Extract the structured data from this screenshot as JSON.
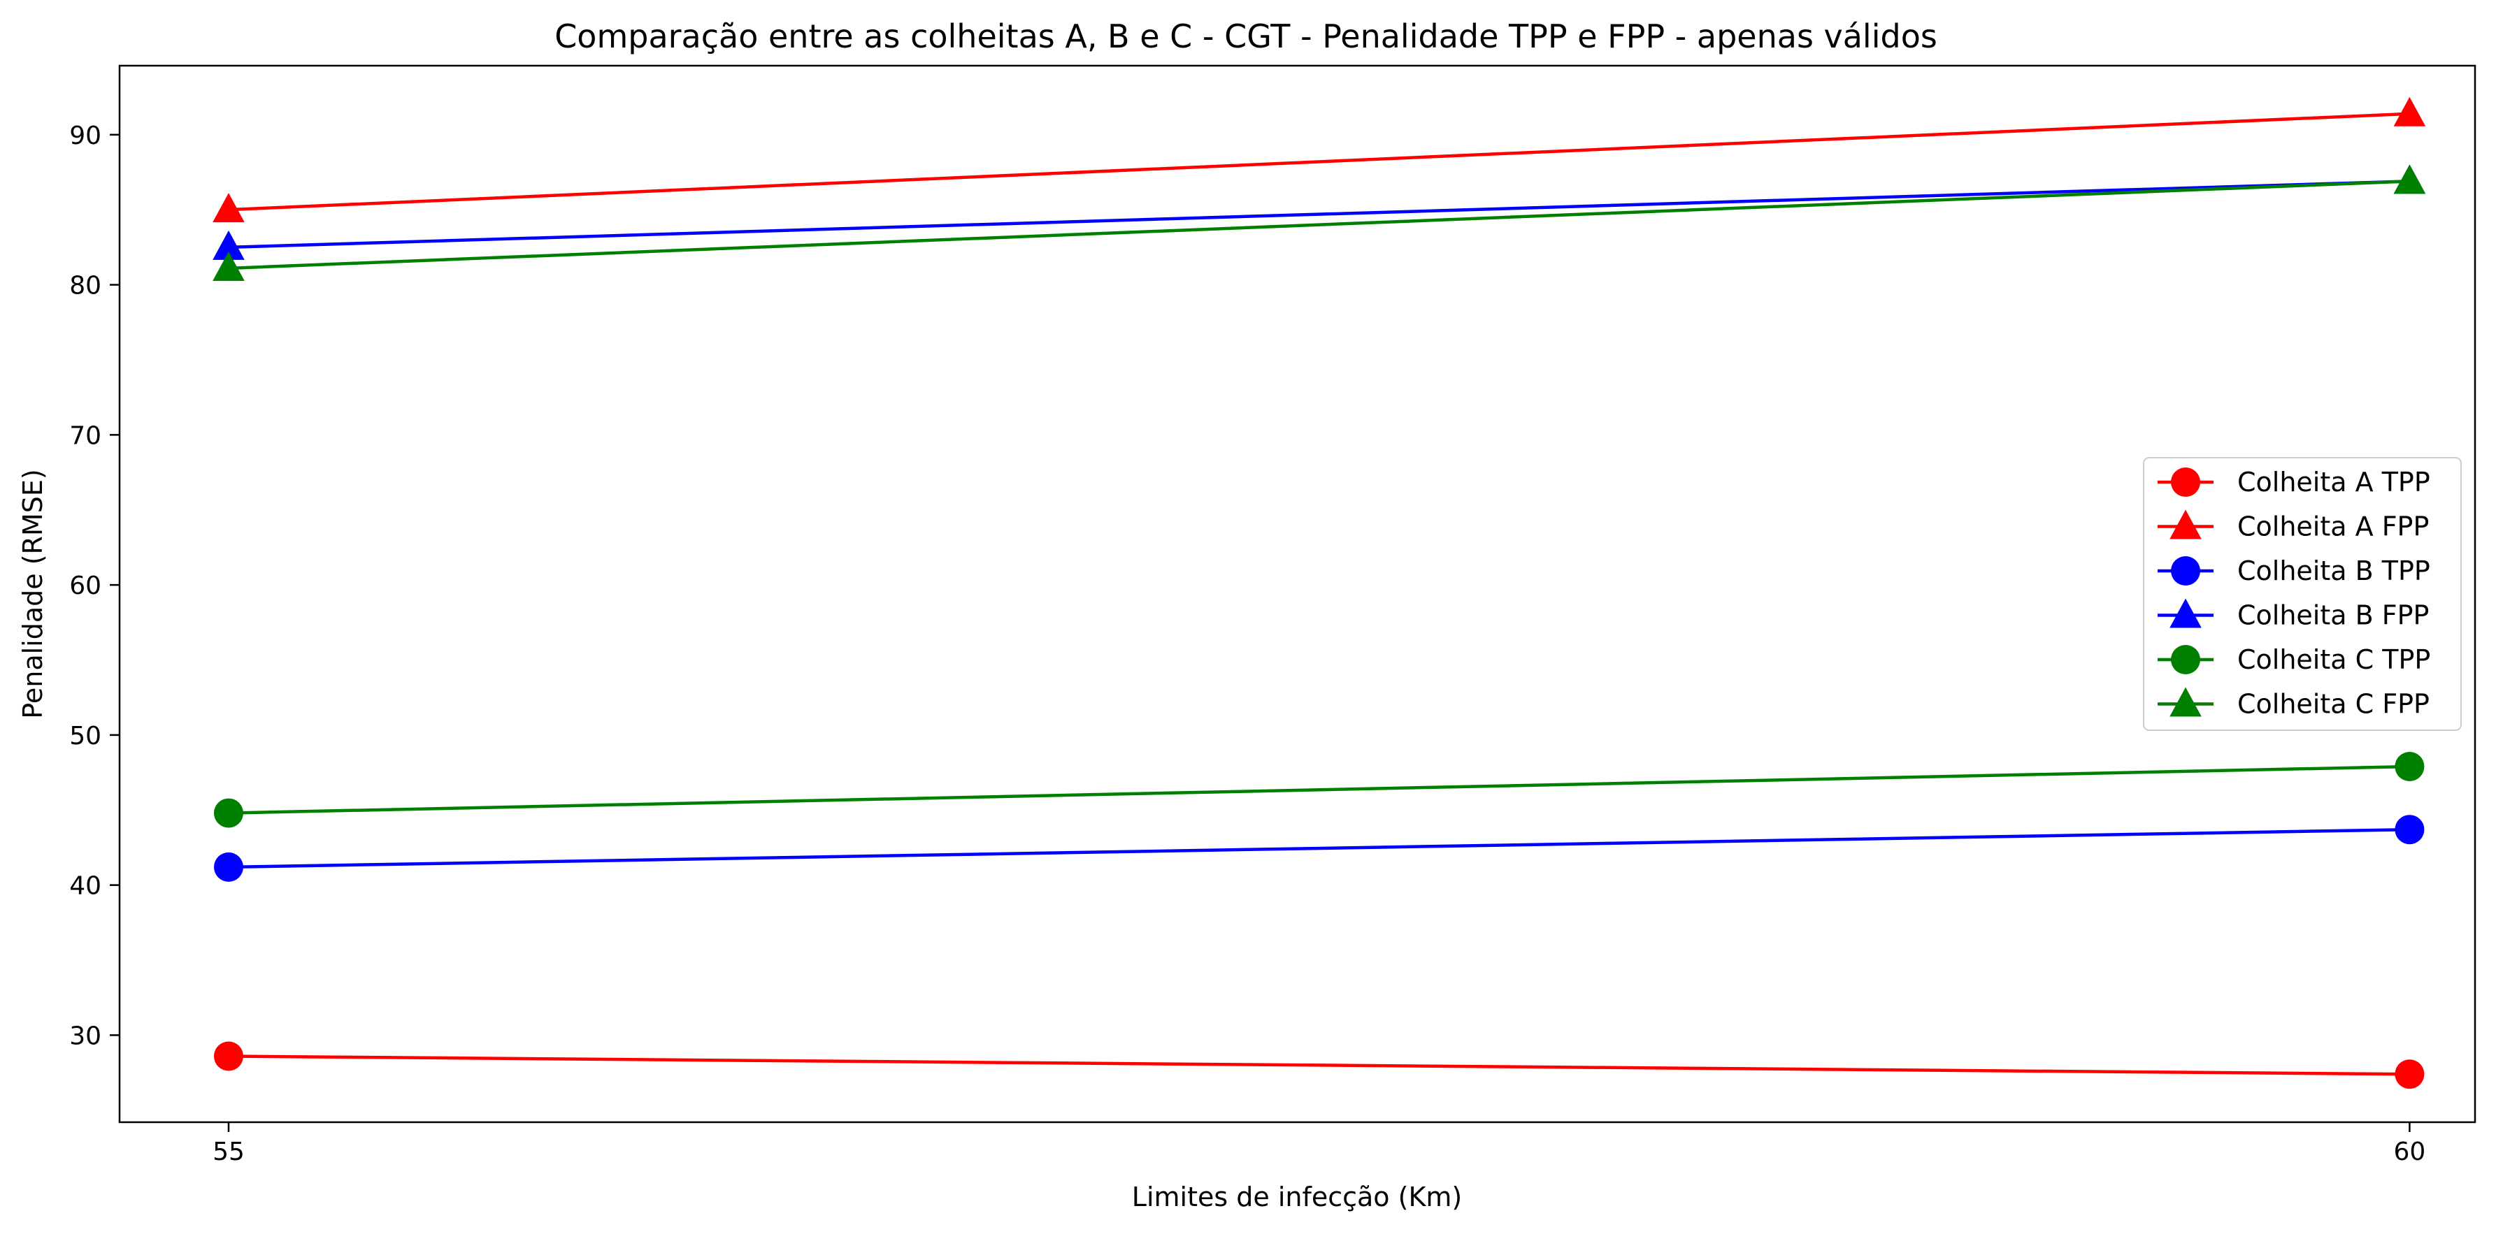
{
  "chart_data": {
    "type": "line",
    "title": "Comparação entre as colheitas A, B e C - CGT - Penalidade TPP e FPP - apenas válidos",
    "xlabel": "Limites de infecção (Km)",
    "ylabel": "Penalidade (RMSE)",
    "x": [
      55,
      60
    ],
    "xlim": [
      54.75,
      60.15
    ],
    "ylim": [
      24.2,
      94.6
    ],
    "xticks": [
      "55",
      "60"
    ],
    "yticks": [
      "30",
      "40",
      "50",
      "60",
      "70",
      "80",
      "90"
    ],
    "grid": false,
    "legend_position": "center-right",
    "series": [
      {
        "name": "Colheita A TPP",
        "color": "#ff0000",
        "marker": "circle",
        "values": [
          28.6,
          27.4
        ]
      },
      {
        "name": "Colheita A FPP",
        "color": "#ff0000",
        "marker": "triangle",
        "values": [
          85.0,
          91.4
        ]
      },
      {
        "name": "Colheita B TPP",
        "color": "#0000ff",
        "marker": "circle",
        "values": [
          41.2,
          43.7
        ]
      },
      {
        "name": "Colheita B FPP",
        "color": "#0000ff",
        "marker": "triangle",
        "values": [
          82.5,
          86.9
        ]
      },
      {
        "name": "Colheita C TPP",
        "color": "#008000",
        "marker": "circle",
        "values": [
          44.8,
          47.9
        ]
      },
      {
        "name": "Colheita C FPP",
        "color": "#008000",
        "marker": "triangle",
        "values": [
          81.1,
          86.9
        ]
      }
    ]
  }
}
